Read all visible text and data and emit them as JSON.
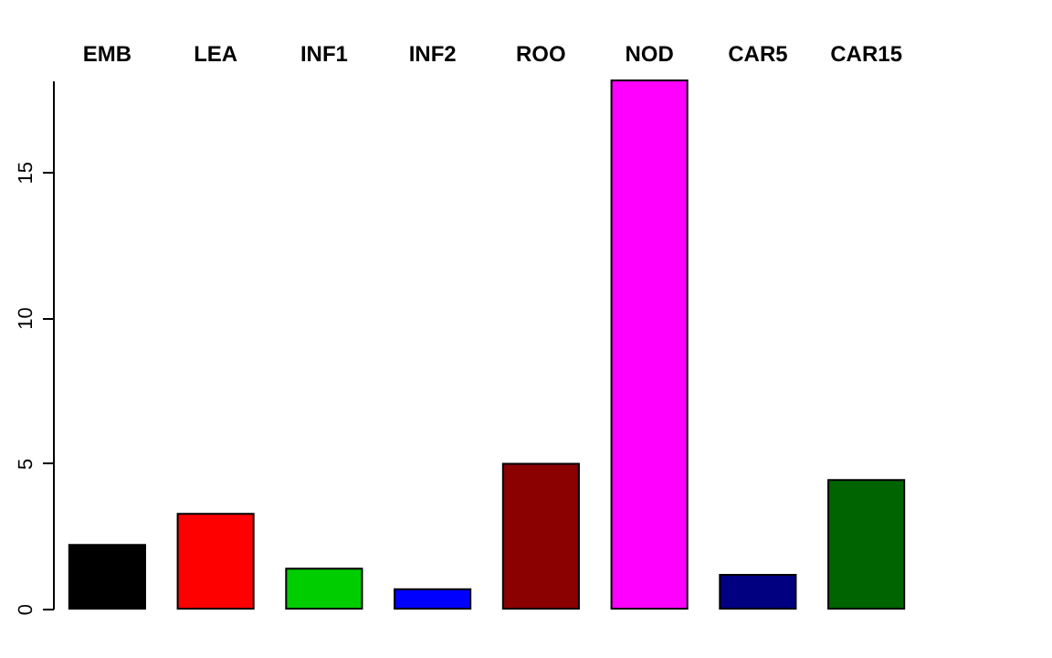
{
  "chart_data": {
    "type": "bar",
    "categories": [
      "EMB",
      "LEA",
      "INF1",
      "INF2",
      "ROO",
      "NOD",
      "CAR5",
      "CAR15"
    ],
    "values": [
      2.19,
      3.26,
      1.37,
      0.67,
      4.98,
      18.15,
      1.16,
      4.42
    ],
    "colors": [
      "#000000",
      "#ff0000",
      "#00cd00",
      "#0000ff",
      "#8b0000",
      "#ff00ff",
      "#000080",
      "#006400"
    ],
    "ylim": [
      0,
      18.15
    ],
    "yticks": [
      0,
      5,
      10,
      15
    ],
    "grid": false
  }
}
